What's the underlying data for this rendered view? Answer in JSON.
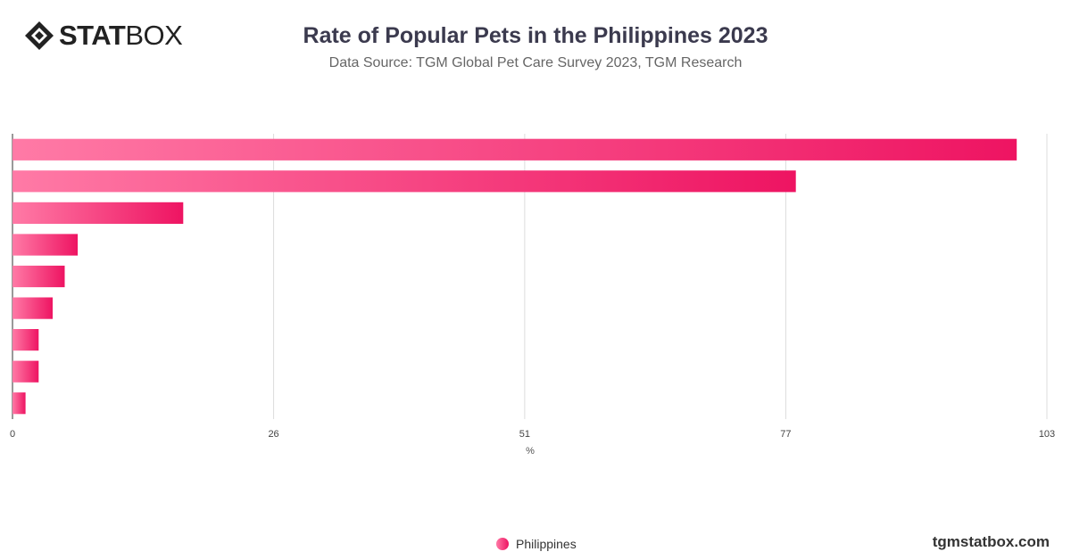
{
  "brand": {
    "name_strong": "STAT",
    "name_light": "BOX"
  },
  "header": {
    "title": "Rate of Popular Pets in the Philippines 2023",
    "subtitle": "Data Source: TGM Global Pet Care Survey 2023, TGM Research"
  },
  "colors": {
    "bar_start": "#ff7aa6",
    "bar_end": "#ee1462",
    "grid": "#dddddd",
    "axis": "#333333"
  },
  "chart_data": {
    "type": "bar",
    "orientation": "horizontal",
    "categories": [
      "",
      "",
      "",
      "",
      "",
      "",
      "",
      "",
      ""
    ],
    "series": [
      {
        "name": "Philippines",
        "values": [
          100,
          78,
          17,
          6.5,
          5.2,
          4.0,
          2.6,
          2.6,
          1.3
        ]
      }
    ],
    "xlabel": "%",
    "ylabel": "",
    "xticks": [
      0,
      26,
      51,
      77,
      103
    ],
    "xlim": [
      0,
      103
    ],
    "grid": true,
    "legend": "bottom-center"
  },
  "legend": {
    "label": "Philippines"
  },
  "footer": {
    "watermark": "tgmstatbox.com"
  }
}
